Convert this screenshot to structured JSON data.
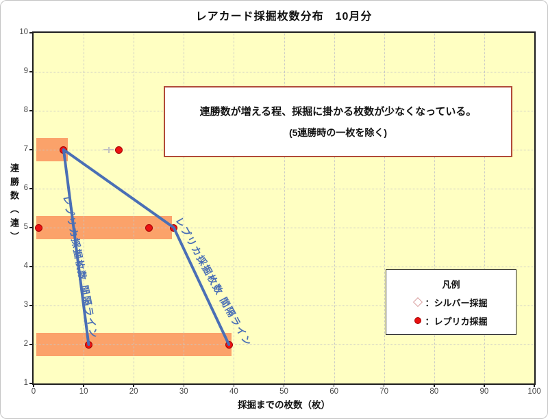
{
  "title": "レアカード採掘枚数分布　10月分",
  "colors": {
    "plot_background": "#FFFFC2",
    "band": "#FBA26A",
    "line": "#4A6FB5",
    "replica_point": "#EC1212",
    "silver_point": "#C2C2C2",
    "annotation_border": "#B14A38",
    "grid": "#C6C6C6"
  },
  "annotation": {
    "line1": "連勝数が増える程、採掘に掛かる枚数が少なくなっている。",
    "line2": "(5連勝時の一枚を除く)"
  },
  "legend": {
    "title": "凡例",
    "items": [
      {
        "marker": "diamond-outline",
        "label": "：シルバー採掘"
      },
      {
        "marker": "red-dot",
        "label": "：レプリカ採掘"
      }
    ]
  },
  "chart_data": {
    "type": "scatter",
    "title": "レアカード採掘枚数分布　10月分",
    "xlabel": "採掘までの枚数（枚）",
    "ylabel": "連勝数（連）",
    "xlim": [
      0,
      100
    ],
    "ylim": [
      1,
      10
    ],
    "x_ticks": [
      0,
      10,
      20,
      30,
      40,
      50,
      60,
      70,
      80,
      90,
      100
    ],
    "y_ticks": [
      1,
      2,
      3,
      4,
      5,
      6,
      7,
      8,
      9,
      10
    ],
    "grid": true,
    "legend_position": "right-middle-box",
    "series": [
      {
        "name": "シルバー採掘",
        "marker": "plus",
        "points": [
          [
            15,
            7
          ]
        ]
      },
      {
        "name": "レプリカ採掘",
        "marker": "dot",
        "points": [
          [
            1,
            5
          ],
          [
            6,
            7
          ],
          [
            11,
            2
          ],
          [
            17,
            7
          ],
          [
            23,
            5
          ],
          [
            28,
            5
          ],
          [
            39,
            2
          ]
        ]
      }
    ],
    "lines": [
      {
        "name": "間隔ライン左",
        "points": [
          [
            6,
            7
          ],
          [
            11,
            2
          ]
        ]
      },
      {
        "name": "間隔ライン右",
        "points": [
          [
            6,
            7
          ],
          [
            28,
            5
          ],
          [
            39,
            2
          ]
        ]
      }
    ],
    "bands": [
      {
        "y": 7,
        "x0": 0.5,
        "x1": 6.8,
        "half_height": 0.3
      },
      {
        "y": 5,
        "x0": 0.5,
        "x1": 27.6,
        "half_height": 0.3
      },
      {
        "y": 2,
        "x0": 0.5,
        "x1": 39.5,
        "half_height": 0.3
      }
    ],
    "line_labels": [
      {
        "text": "レプリカ採掘枚数 間隔ライン",
        "x": 7.9,
        "y": 5.86,
        "angle_deg": 79
      },
      {
        "text": "レプリカ採掘枚数 間隔ライン",
        "x": 30.1,
        "y": 5.33,
        "angle_deg": 61
      }
    ]
  }
}
